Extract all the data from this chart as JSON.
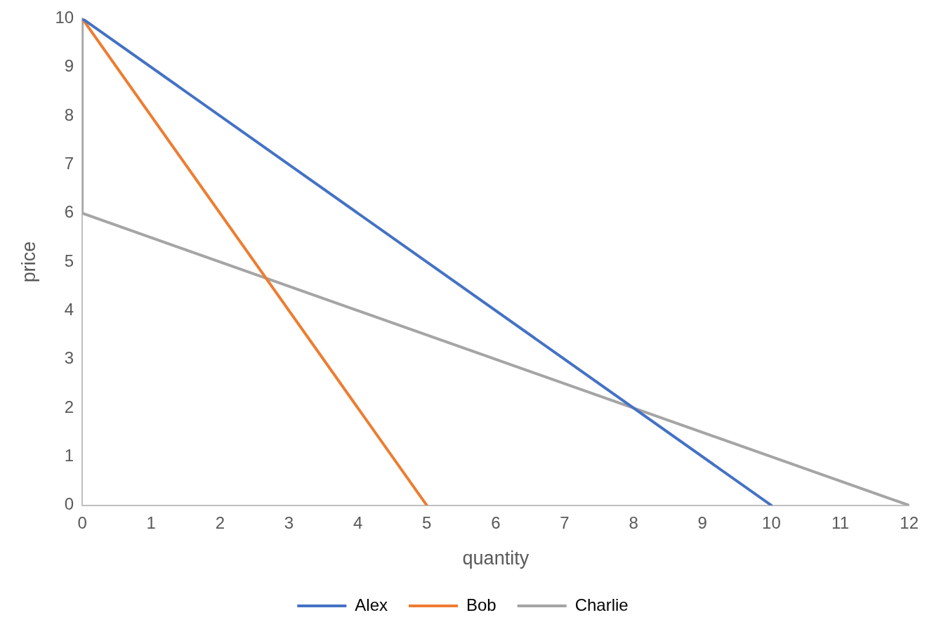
{
  "chart_data": {
    "type": "line",
    "xlabel": "quantity",
    "ylabel": "price",
    "series": [
      {
        "name": "Alex",
        "color": "#4472c4",
        "x": [
          0,
          10
        ],
        "values": [
          10,
          0
        ]
      },
      {
        "name": "Bob",
        "color": "#ed7d31",
        "x": [
          0,
          1,
          5
        ],
        "values": [
          10,
          8,
          0
        ]
      },
      {
        "name": "Charlie",
        "color": "#a5a5a5",
        "x": [
          0,
          0,
          12
        ],
        "values": [
          10,
          6,
          0
        ]
      }
    ],
    "xlim": [
      0,
      12
    ],
    "ylim": [
      0,
      10
    ],
    "xticks": [
      0,
      1,
      2,
      3,
      4,
      5,
      6,
      7,
      8,
      9,
      10,
      11,
      12
    ],
    "yticks": [
      0,
      1,
      2,
      3,
      4,
      5,
      6,
      7,
      8,
      9,
      10
    ],
    "legend": "bottom",
    "marker": "none"
  }
}
